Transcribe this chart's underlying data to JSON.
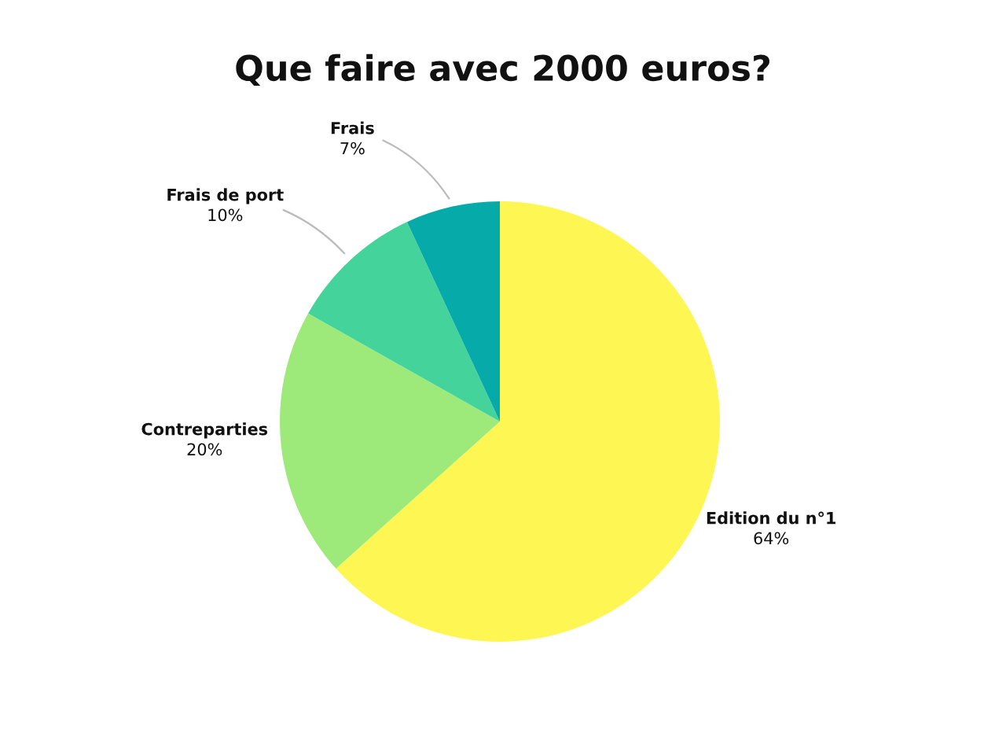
{
  "chart_data": {
    "type": "pie",
    "title": "Que faire avec 2000 euros?",
    "categories": [
      "Edition du n°1",
      "Contreparties",
      "Frais de port",
      "Frais"
    ],
    "values": [
      64,
      20,
      10,
      7
    ],
    "value_labels": [
      "64%",
      "20%",
      "10%",
      "7%"
    ],
    "colors": [
      "#fef753",
      "#9de979",
      "#45d39c",
      "#05aaa9"
    ],
    "legend": false
  }
}
